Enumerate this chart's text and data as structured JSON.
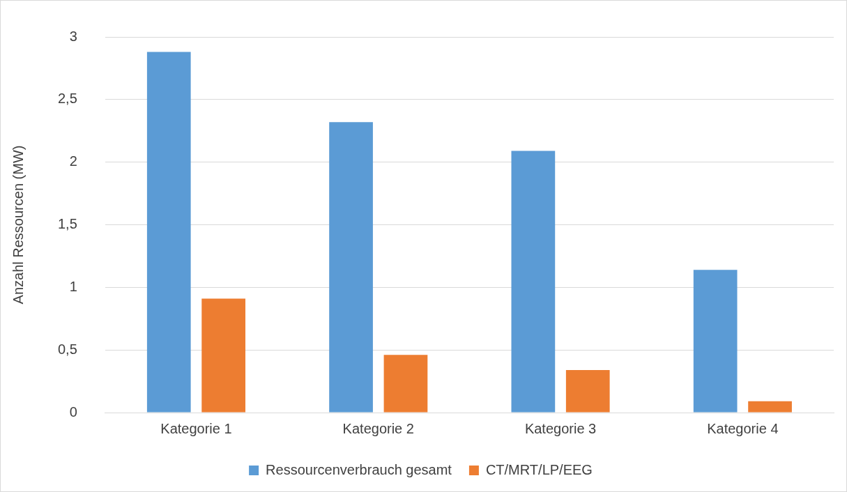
{
  "chart_data": {
    "type": "bar",
    "ylabel": "Anzahl Ressourcen (MW)",
    "categories": [
      "Kategorie 1",
      "Kategorie 2",
      "Kategorie 3",
      "Kategorie 4"
    ],
    "series": [
      {
        "name": "Ressourcenverbrauch gesamt",
        "color": "#5b9bd5",
        "values": [
          2.88,
          2.32,
          2.09,
          1.14
        ]
      },
      {
        "name": "CT/MRT/LP/EEG",
        "color": "#ed7d31",
        "values": [
          0.91,
          0.46,
          0.34,
          0.09
        ]
      }
    ],
    "ylim": [
      0,
      3
    ],
    "yticks": [
      0,
      {
        "value": 0.5,
        "label": "0,5"
      },
      1,
      {
        "value": 1.5,
        "label": "1,5"
      },
      2,
      {
        "value": 2.5,
        "label": "2,5"
      },
      3
    ],
    "grid": "y",
    "legend": "bottom"
  }
}
